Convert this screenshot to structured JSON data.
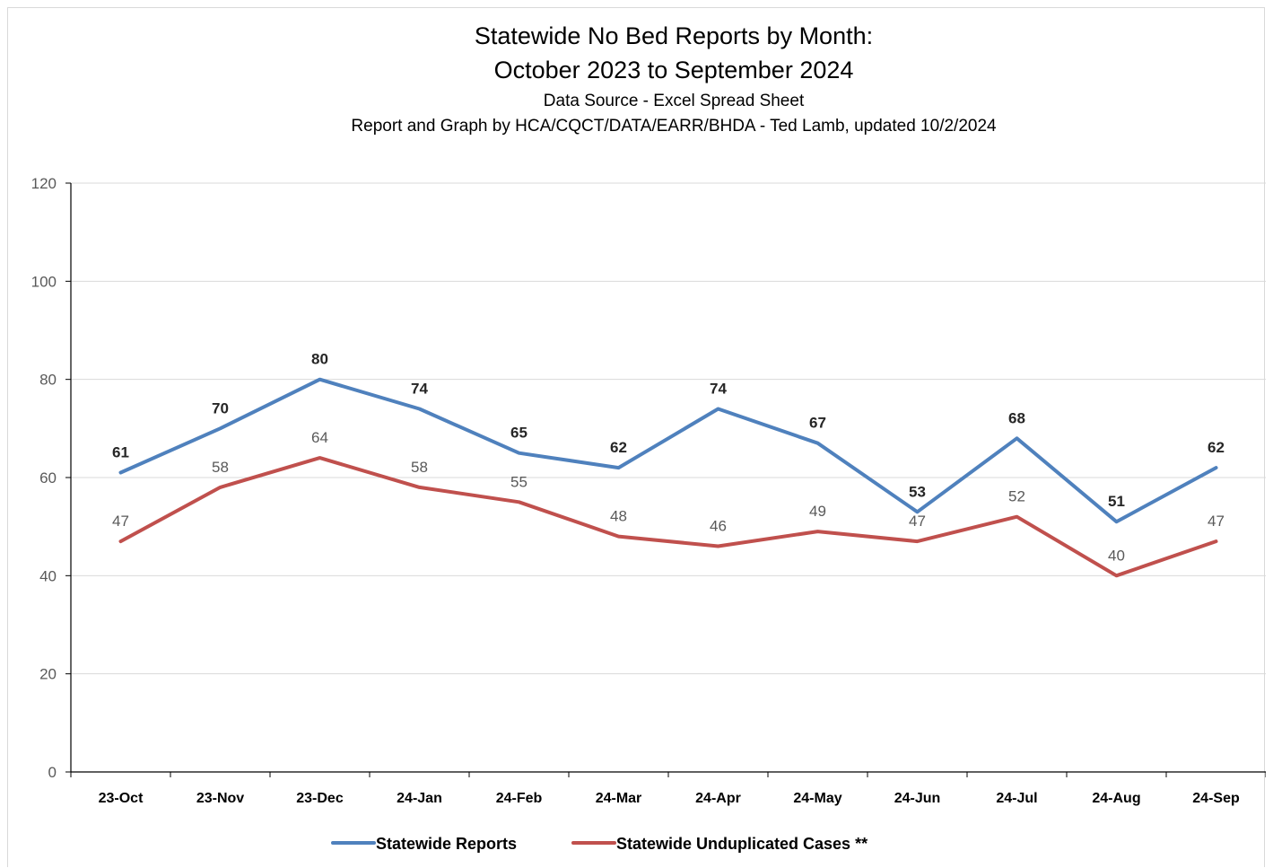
{
  "chart_data": {
    "type": "line",
    "title": "Statewide No Bed Reports by Month:",
    "title_line2": "October 2023 to September 2024",
    "subtitle": "Data Source - Excel Spread Sheet",
    "subtitle2": "Report and Graph by HCA/CQCT/DATA/EARR/BHDA -  Ted Lamb, updated 10/2/2024",
    "xlabel": "",
    "ylabel": "",
    "ylim": [
      0,
      120
    ],
    "yticks": [
      0,
      20,
      40,
      60,
      80,
      100,
      120
    ],
    "grid": true,
    "legend_position": "bottom",
    "categories": [
      "23-Oct",
      "23-Nov",
      "23-Dec",
      "24-Jan",
      "24-Feb",
      "24-Mar",
      "24-Apr",
      "24-May",
      "24-Jun",
      "24-Jul",
      "24-Aug",
      "24-Sep"
    ],
    "series": [
      {
        "name": "Statewide Reports",
        "color": "#4f81bd",
        "label_color": "#262626",
        "label_bold": true,
        "values": [
          61,
          70,
          80,
          74,
          65,
          62,
          74,
          67,
          53,
          68,
          51,
          62
        ]
      },
      {
        "name": "Statewide Unduplicated Cases **",
        "color": "#c0504d",
        "label_color": "#595959",
        "label_bold": false,
        "values": [
          47,
          58,
          64,
          58,
          55,
          48,
          46,
          49,
          47,
          52,
          40,
          47
        ]
      }
    ]
  }
}
